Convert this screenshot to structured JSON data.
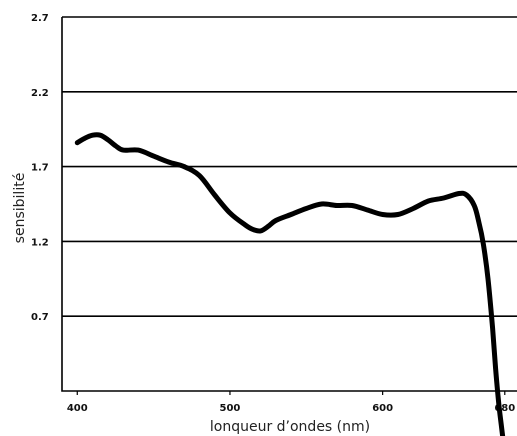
{
  "chart_data": {
    "type": "line",
    "title": "",
    "xlabel": "lonqueur d’ondes (nm)",
    "ylabel": "sensibilité",
    "xlim": [
      390,
      688
    ],
    "ylim": [
      0.2,
      2.7
    ],
    "x_ticks": [
      400,
      500,
      600,
      680
    ],
    "y_ticks": [
      0.7,
      1.2,
      1.7,
      2.2,
      2.7
    ],
    "grid": "horizontal",
    "series": [
      {
        "x": [
          400,
          405,
          410,
          415,
          420,
          425,
          430,
          440,
          450,
          460,
          470,
          480,
          490,
          500,
          510,
          515,
          520,
          525,
          530,
          540,
          550,
          560,
          570,
          580,
          590,
          600,
          610,
          620,
          630,
          640,
          650,
          655,
          660,
          663,
          666,
          669,
          672,
          674,
          676,
          678,
          680
        ],
        "y": [
          1.86,
          1.89,
          1.91,
          1.91,
          1.88,
          1.84,
          1.81,
          1.81,
          1.77,
          1.73,
          1.7,
          1.64,
          1.51,
          1.39,
          1.31,
          1.28,
          1.27,
          1.3,
          1.34,
          1.38,
          1.42,
          1.45,
          1.44,
          1.44,
          1.41,
          1.38,
          1.38,
          1.42,
          1.47,
          1.49,
          1.52,
          1.51,
          1.44,
          1.33,
          1.18,
          0.95,
          0.62,
          0.35,
          0.12,
          -0.05,
          -0.22
        ]
      }
    ]
  }
}
